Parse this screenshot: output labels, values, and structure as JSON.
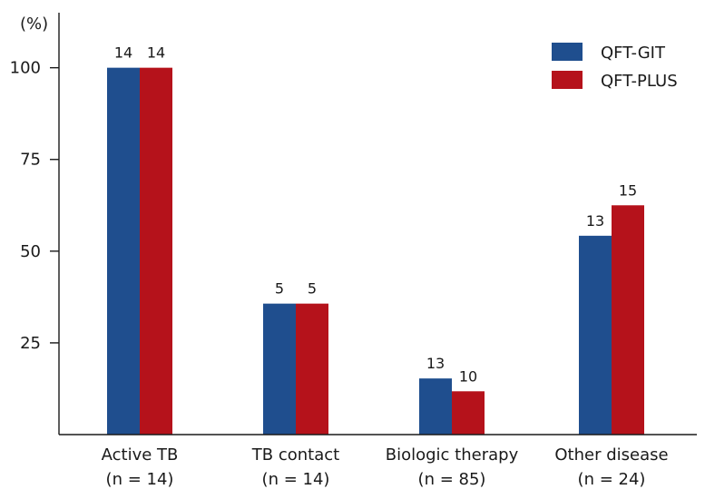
{
  "chart_data": {
    "type": "bar",
    "ylabel": "(%)",
    "ylim": [
      0,
      115
    ],
    "yticks": [
      25,
      50,
      75,
      100
    ],
    "grid": false,
    "legend_position": "top-right",
    "categories": [
      {
        "name": "Active TB",
        "n_label": "(n = 14)"
      },
      {
        "name": "TB contact",
        "n_label": "(n = 14)"
      },
      {
        "name": "Biologic therapy",
        "n_label": "(n = 85)"
      },
      {
        "name": "Other disease",
        "n_label": "(n = 24)"
      }
    ],
    "series": [
      {
        "name": "QFT-GIT",
        "color": "#1f4e8e",
        "values": [
          100,
          35.7,
          15.3,
          54.2
        ],
        "labels": [
          "14",
          "5",
          "13",
          "13"
        ]
      },
      {
        "name": "QFT-PLUS",
        "color": "#b5121b",
        "values": [
          100,
          35.7,
          11.8,
          62.5
        ],
        "labels": [
          "14",
          "5",
          "10",
          "15"
        ]
      }
    ]
  }
}
